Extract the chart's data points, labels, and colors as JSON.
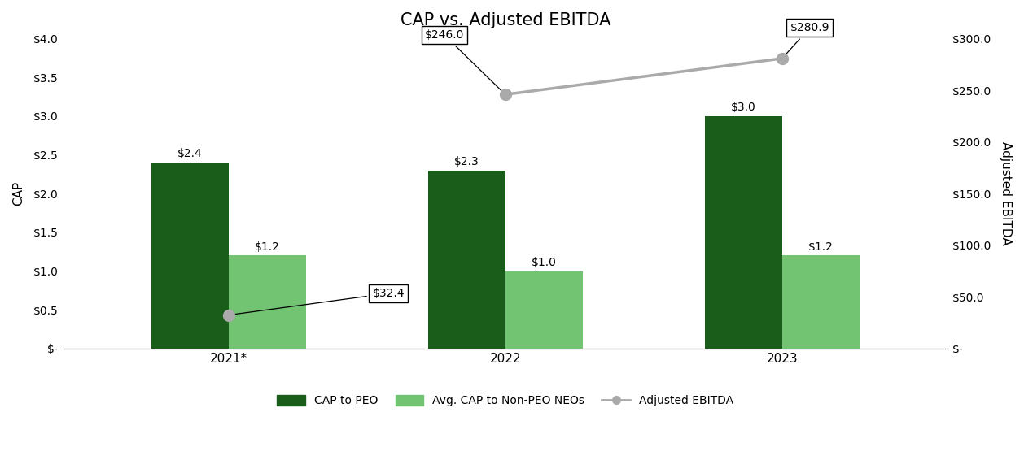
{
  "title": "CAP vs. Adjusted EBITDA",
  "categories": [
    "2021*",
    "2022",
    "2023"
  ],
  "cap_peo": [
    2.4,
    2.3,
    3.0
  ],
  "cap_non_peo": [
    1.2,
    1.0,
    1.2
  ],
  "adjusted_ebitda_2021": 32.4,
  "adjusted_ebitda_line": [
    246.0,
    280.9
  ],
  "cap_peo_color": "#1a5c1a",
  "cap_non_peo_color": "#72c472",
  "ebitda_line_color": "#aaaaaa",
  "ebitda_marker_color": "#aaaaaa",
  "ylim_left": [
    0,
    4.0
  ],
  "ylim_right": [
    0,
    300.0
  ],
  "ylabel_left": "CAP",
  "ylabel_right": "Adjusted EBITDA",
  "yticks_left": [
    0,
    0.5,
    1.0,
    1.5,
    2.0,
    2.5,
    3.0,
    3.5,
    4.0
  ],
  "ytick_labels_left": [
    "$-",
    "$0.5",
    "$1.0",
    "$1.5",
    "$2.0",
    "$2.5",
    "$3.0",
    "$3.5",
    "$4.0"
  ],
  "yticks_right": [
    0,
    50,
    100,
    150,
    200,
    250,
    300
  ],
  "ytick_labels_right": [
    "$-",
    "$50.0",
    "$100.0",
    "$150.0",
    "$200.0",
    "$250.0",
    "$300.0"
  ],
  "bar_width": 0.28,
  "background_color": "#ffffff",
  "legend_labels": [
    "CAP to PEO",
    "Avg. CAP to Non-PEO NEOs",
    "Adjusted EBITDA"
  ],
  "cap_peo_labels": [
    "$2.4",
    "$2.3",
    "$3.0"
  ],
  "cap_non_peo_labels": [
    "$1.2",
    "$1.0",
    "$1.2"
  ],
  "ebitda_label_2021": "$32.4",
  "ebitda_label_2022": "$246.0",
  "ebitda_label_2023": "$280.9",
  "title_fontsize": 15,
  "axis_label_fontsize": 11,
  "tick_fontsize": 10,
  "bar_label_fontsize": 10,
  "ebitda_label_fontsize": 10
}
